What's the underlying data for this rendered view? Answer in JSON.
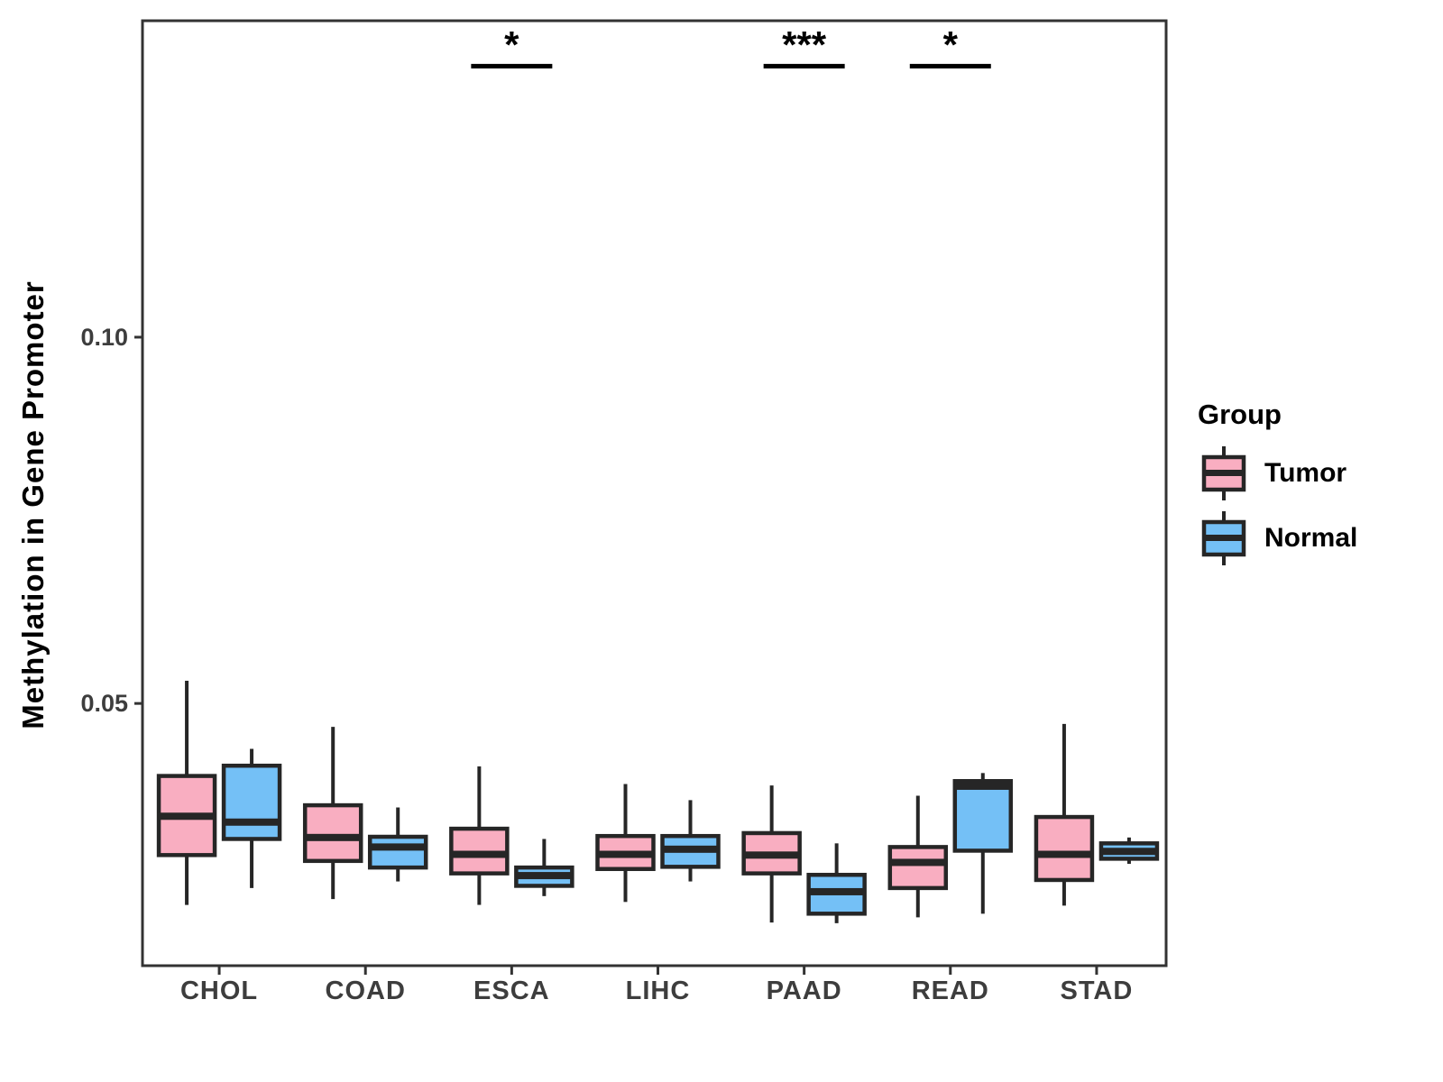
{
  "y_axis": {
    "label": "Methylation in Gene Promoter",
    "tick_labels": [
      "0.05",
      "0.10"
    ]
  },
  "x_axis": {
    "label": "",
    "categories": [
      "CHOL",
      "COAD",
      "ESCA",
      "LIHC",
      "PAAD",
      "READ",
      "STAD"
    ]
  },
  "legend": {
    "title": "Group",
    "items": [
      {
        "label": "Tumor",
        "color": "#F9AEC1"
      },
      {
        "label": "Normal",
        "color": "#74C0F6"
      }
    ]
  },
  "colors": {
    "box_border": "#262626",
    "panel_border": "#333333",
    "tick_text": "#3d3d3d",
    "significance": "#000000"
  },
  "chart_data": {
    "type": "boxplot",
    "title": "",
    "xlabel": "",
    "ylabel": "Methylation in Gene Promoter",
    "categories": [
      "CHOL",
      "COAD",
      "ESCA",
      "LIHC",
      "PAAD",
      "READ",
      "STAD"
    ],
    "ylim": [
      0.0142,
      0.1432
    ],
    "yticks": [
      {
        "value": 0.05,
        "label": "0.05"
      },
      {
        "value": 0.1,
        "label": "0.10"
      }
    ],
    "grid": false,
    "legend_position": "right",
    "series": [
      {
        "name": "Tumor",
        "fill": "#F9AEC1",
        "boxes": [
          {
            "category": "CHOL",
            "whisker_low": 0.0225,
            "q1": 0.0293,
            "median": 0.0346,
            "q3": 0.0401,
            "whisker_high": 0.0531
          },
          {
            "category": "COAD",
            "whisker_low": 0.0233,
            "q1": 0.0285,
            "median": 0.0317,
            "q3": 0.0361,
            "whisker_high": 0.0468
          },
          {
            "category": "ESCA",
            "whisker_low": 0.0225,
            "q1": 0.0268,
            "median": 0.0294,
            "q3": 0.0329,
            "whisker_high": 0.0414
          },
          {
            "category": "LIHC",
            "whisker_low": 0.0229,
            "q1": 0.0274,
            "median": 0.0294,
            "q3": 0.0319,
            "whisker_high": 0.039
          },
          {
            "category": "PAAD",
            "whisker_low": 0.0201,
            "q1": 0.0268,
            "median": 0.0293,
            "q3": 0.0323,
            "whisker_high": 0.0388
          },
          {
            "category": "READ",
            "whisker_low": 0.0208,
            "q1": 0.0248,
            "median": 0.0283,
            "q3": 0.0304,
            "whisker_high": 0.0374
          },
          {
            "category": "STAD",
            "whisker_low": 0.0224,
            "q1": 0.0259,
            "median": 0.0294,
            "q3": 0.0345,
            "whisker_high": 0.0472
          }
        ]
      },
      {
        "name": "Normal",
        "fill": "#74C0F6",
        "boxes": [
          {
            "category": "CHOL",
            "whisker_low": 0.0248,
            "q1": 0.0315,
            "median": 0.0338,
            "q3": 0.0415,
            "whisker_high": 0.0438
          },
          {
            "category": "COAD",
            "whisker_low": 0.0257,
            "q1": 0.0276,
            "median": 0.0304,
            "q3": 0.0318,
            "whisker_high": 0.0358
          },
          {
            "category": "ESCA",
            "whisker_low": 0.0237,
            "q1": 0.0251,
            "median": 0.0265,
            "q3": 0.0276,
            "whisker_high": 0.0315
          },
          {
            "category": "LIHC",
            "whisker_low": 0.0257,
            "q1": 0.0277,
            "median": 0.0301,
            "q3": 0.0319,
            "whisker_high": 0.0368
          },
          {
            "category": "PAAD",
            "whisker_low": 0.02,
            "q1": 0.0213,
            "median": 0.0243,
            "q3": 0.0266,
            "whisker_high": 0.0309
          },
          {
            "category": "READ",
            "whisker_low": 0.0213,
            "q1": 0.0299,
            "median": 0.0387,
            "q3": 0.0394,
            "whisker_high": 0.0405
          },
          {
            "category": "STAD",
            "whisker_low": 0.0281,
            "q1": 0.0288,
            "median": 0.0298,
            "q3": 0.0309,
            "whisker_high": 0.0317
          }
        ]
      }
    ],
    "significance": [
      {
        "category": "ESCA",
        "label": "*",
        "y": 0.137
      },
      {
        "category": "PAAD",
        "label": "***",
        "y": 0.137
      },
      {
        "category": "READ",
        "label": "*",
        "y": 0.137
      }
    ]
  }
}
